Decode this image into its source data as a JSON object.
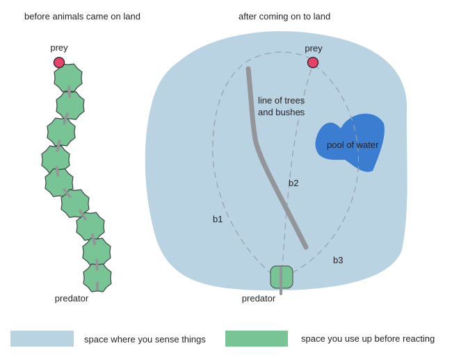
{
  "left_panel": {
    "title": "before animals came on land",
    "prey_label": "prey",
    "predator_label": "predator"
  },
  "right_panel": {
    "title": "after coming on to land",
    "prey_label": "prey",
    "predator_label": "predator",
    "trees_label_line1": "line of trees",
    "trees_label_line2": "and bushes",
    "pool_label": "pool of water",
    "path_labels": [
      "b1",
      "b2",
      "b3"
    ]
  },
  "legend": {
    "sense_label": "space where you sense things",
    "use_label": "space you use up before reacting"
  },
  "colors": {
    "sense_space": "#b9d3e2",
    "use_space": "#78c495",
    "prey": "#e5436a",
    "pool": "#3b7dd0",
    "trees": "#939598",
    "path": "#9aa0a6"
  }
}
